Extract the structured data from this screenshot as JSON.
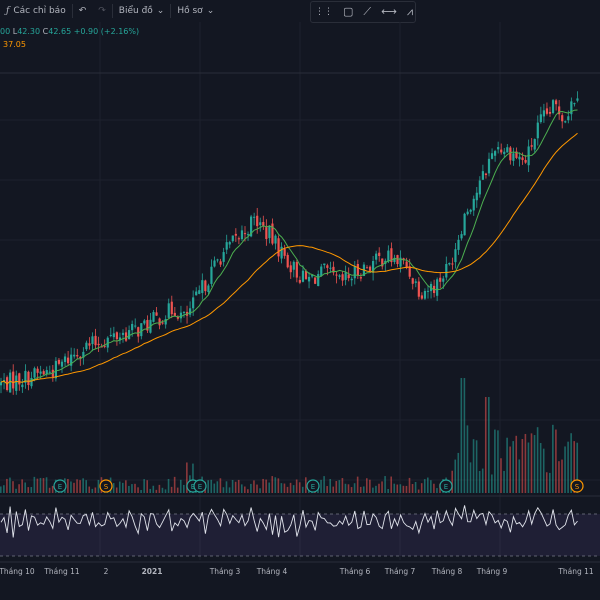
{
  "toolbar": {
    "indicators_label": "Các chỉ báo",
    "chart_label": "Biểu đồ",
    "profile_label": "Hồ sơ"
  },
  "ohlc": {
    "partial_open_tail": "00",
    "low_label": "L",
    "low_value": "42.30",
    "close_label": "C",
    "close_value": "42.65",
    "change": "+0.90 (+2.16%)"
  },
  "ma_value": "37.05",
  "colors": {
    "background": "#131722",
    "up": "#26a69a",
    "down": "#ef5350",
    "ma_fast": "#4caf50",
    "ma_slow": "#ff9800",
    "rsi_line": "#e0e3eb",
    "rsi_band": "#7e57c2"
  },
  "chart_data": {
    "type": "candlestick",
    "x_ticks": [
      "Tháng 10",
      "Tháng 11",
      "2",
      "2021",
      "Tháng 3",
      "Tháng 4",
      "Tháng 6",
      "Tháng 7",
      "Tháng 8",
      "Tháng 9",
      "Tháng 11"
    ],
    "price_keypoints": [
      [
        0,
        18.9
      ],
      [
        30,
        19.6
      ],
      [
        55,
        20.2
      ],
      [
        80,
        22.0
      ],
      [
        110,
        23.0
      ],
      [
        140,
        23.8
      ],
      [
        175,
        25.6
      ],
      [
        185,
        24.6
      ],
      [
        200,
        27.0
      ],
      [
        220,
        30.2
      ],
      [
        240,
        32.0
      ],
      [
        255,
        33.5
      ],
      [
        270,
        32.0
      ],
      [
        290,
        29.5
      ],
      [
        305,
        28.0
      ],
      [
        325,
        28.8
      ],
      [
        340,
        27.8
      ],
      [
        360,
        29.0
      ],
      [
        385,
        30.2
      ],
      [
        405,
        29.5
      ],
      [
        420,
        27.2
      ],
      [
        435,
        27.6
      ],
      [
        450,
        29.5
      ],
      [
        465,
        34.0
      ],
      [
        480,
        36.5
      ],
      [
        495,
        40.0
      ],
      [
        510,
        39.5
      ],
      [
        525,
        38.5
      ],
      [
        540,
        42.0
      ],
      [
        555,
        43.5
      ],
      [
        565,
        42.5
      ],
      [
        578,
        45.0
      ]
    ],
    "event_markers": [
      {
        "type": "E",
        "color": "green"
      },
      {
        "type": "S",
        "color": "orange"
      },
      {
        "type": "E",
        "color": "green"
      },
      {
        "type": "E",
        "color": "green"
      },
      {
        "type": "E",
        "color": "green"
      },
      {
        "type": "E",
        "color": "green"
      },
      {
        "type": "S",
        "color": "orange"
      }
    ],
    "series": [
      {
        "name": "Price",
        "style": "candles"
      },
      {
        "name": "MA",
        "style": "line",
        "color": "#4caf50"
      },
      {
        "name": "MA",
        "style": "line",
        "color": "#ff9800"
      },
      {
        "name": "Volume",
        "style": "bars"
      },
      {
        "name": "RSI",
        "style": "line"
      }
    ],
    "grid": true
  }
}
